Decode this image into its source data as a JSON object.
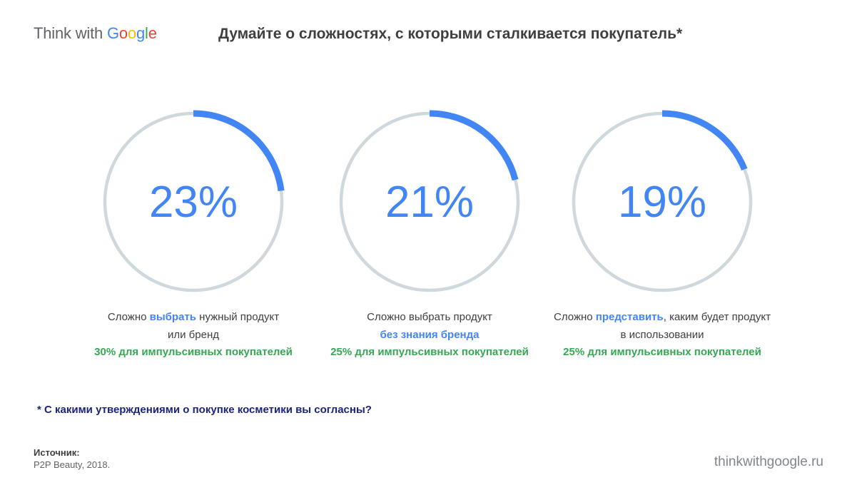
{
  "logo": {
    "prefix": "Think with ",
    "g1": "G",
    "g2": "o",
    "g3": "o",
    "g4": "g",
    "g5": "l",
    "g6": "e"
  },
  "title": "Думайте о сложностях, с которыми сталкивается покупатель*",
  "colors": {
    "accent": "#4285f4",
    "track": "#cfd8dc",
    "green": "#34a853",
    "footnote": "#1a237e"
  },
  "chart_data": {
    "type": "pie",
    "values": [
      23,
      21,
      19
    ],
    "labels": [
      "23%",
      "21%",
      "19%"
    ]
  },
  "items": [
    {
      "pct": "23%",
      "line1_pre": "Сложно ",
      "line1_hl": "выбрать",
      "line1_post": " нужный продукт",
      "line2_pre": "или бренд",
      "line2_hl": "",
      "sub": "30% для импульсивных покупателей"
    },
    {
      "pct": "21%",
      "line1_pre": "Сложно выбрать продукт",
      "line1_hl": "",
      "line1_post": "",
      "line2_pre": "",
      "line2_hl": "без знания бренда",
      "sub": "25% для импульсивных покупателей"
    },
    {
      "pct": "19%",
      "line1_pre": "Сложно ",
      "line1_hl": "представить",
      "line1_post": ", каким будет продукт",
      "line2_pre": "в использовании",
      "line2_hl": "",
      "sub": "25% для импульсивных покупателей"
    }
  ],
  "footnote": "* С какими утверждениями о покупке косметики вы согласны?",
  "source": {
    "label": "Источник:",
    "text": "P2P Beauty, 2018."
  },
  "site": "thinkwithgoogle.ru"
}
